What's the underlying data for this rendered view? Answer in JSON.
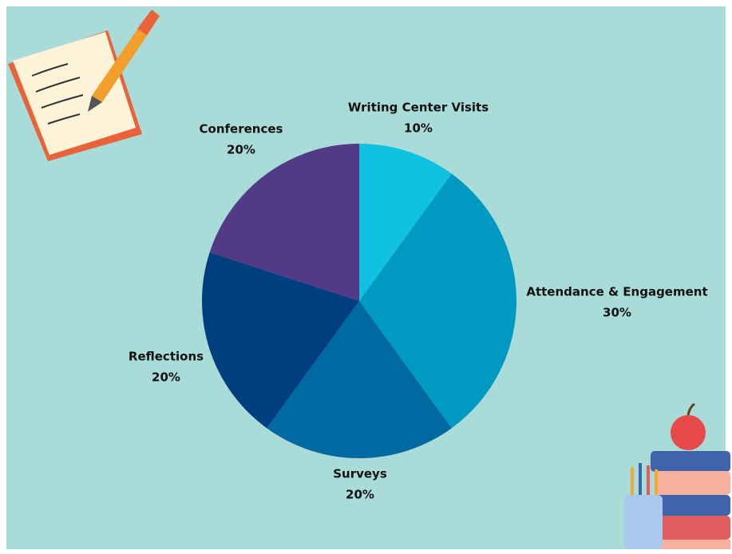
{
  "chart_data": {
    "type": "pie",
    "categories": [
      "Writing Center Visits",
      "Attendance & Engagement",
      "Surveys",
      "Reflections",
      "Conferences"
    ],
    "values": [
      10,
      30,
      20,
      20,
      20
    ],
    "value_labels": [
      "10%",
      "30%",
      "20%",
      "20%",
      "20%"
    ],
    "colors": [
      "#0fc3e0",
      "#0099c1",
      "#0069a1",
      "#003f7f",
      "#533a87"
    ]
  }
}
